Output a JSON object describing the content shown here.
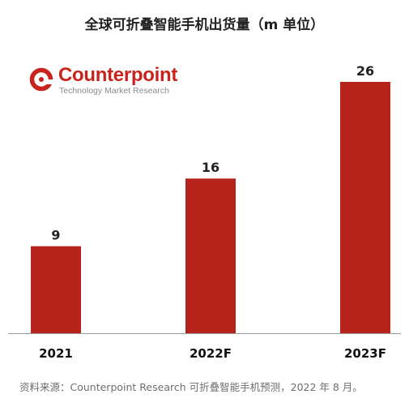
{
  "title": "全球可折叠智能手机出货量（m 单位）",
  "logo": {
    "name": "Counterpoint",
    "tagline": "Technology Market Research"
  },
  "source": "资料来源：Counterpoint Research 可折叠智能手机预测，2022 年 8 月。",
  "colors": {
    "bar": "#b5231b",
    "axis": "#9a9a9a",
    "logo": "#c8241d"
  },
  "chart_data": {
    "type": "bar",
    "title": "全球可折叠智能手机出货量（m 单位）",
    "categories": [
      "2021",
      "2022F",
      "2023F"
    ],
    "values": [
      9,
      16,
      26
    ],
    "data_labels": [
      "9",
      "16",
      "26"
    ],
    "xlabel": "",
    "ylabel": "",
    "ylim": [
      0,
      30
    ],
    "grid": false,
    "legend": false
  }
}
